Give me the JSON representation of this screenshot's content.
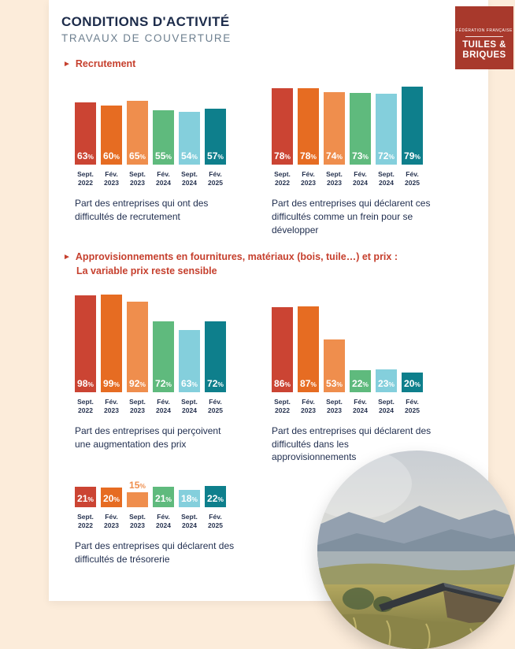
{
  "page": {
    "title": "CONDITIONS D'ACTIVITÉ",
    "subtitle": "TRAVAUX DE COUVERTURE"
  },
  "logo": {
    "org": "FÉDÉRATION FRANÇAISE",
    "name_line1": "TUILES &",
    "name_line2": "BRIQUES"
  },
  "sections": [
    {
      "arrow": "►",
      "title": "Recrutement"
    },
    {
      "arrow": "►",
      "title_line1": "Approvisionnements en fournitures, matériaux (bois, tuile…) et prix :",
      "title_line2": "La variable prix reste sensible"
    }
  ],
  "style": {
    "bar_colors": [
      "#cb4433",
      "#e66c22",
      "#ef8e4d",
      "#5fba7d",
      "#84cfdc",
      "#0e7f8c"
    ],
    "accent_red": "#c6402e",
    "navy": "#1c2b4a",
    "page_bg": "#fcecda",
    "card_bg": "#ffffff",
    "logo_bg": "#a8392c"
  },
  "chart_data": [
    {
      "type": "bar",
      "categories": [
        "Sept. 2022",
        "Fév. 2023",
        "Sept. 2023",
        "Fév. 2024",
        "Sept. 2024",
        "Fév. 2025"
      ],
      "values": [
        63,
        60,
        65,
        55,
        54,
        57
      ],
      "unit": "%",
      "ylim": [
        0,
        100
      ],
      "grid": false,
      "legend": false,
      "caption": "Part des entreprises qui ont des difficultés de recrutement"
    },
    {
      "type": "bar",
      "categories": [
        "Sept. 2022",
        "Fév. 2023",
        "Sept. 2023",
        "Fév. 2024",
        "Sept. 2024",
        "Fév. 2025"
      ],
      "values": [
        78,
        78,
        74,
        73,
        72,
        79
      ],
      "unit": "%",
      "ylim": [
        0,
        100
      ],
      "grid": false,
      "legend": false,
      "caption": "Part des entreprises qui déclarent ces difficultés comme un frein pour se développer"
    },
    {
      "type": "bar",
      "categories": [
        "Sept. 2022",
        "Fév. 2023",
        "Sept. 2023",
        "Fév. 2024",
        "Sept. 2024",
        "Fév. 2025"
      ],
      "values": [
        98,
        99,
        92,
        72,
        63,
        72
      ],
      "unit": "%",
      "ylim": [
        0,
        100
      ],
      "grid": false,
      "legend": false,
      "caption": "Part des entreprises qui perçoivent une augmentation des prix"
    },
    {
      "type": "bar",
      "categories": [
        "Sept. 2022",
        "Fév. 2023",
        "Sept. 2023",
        "Fév. 2024",
        "Sept. 2024",
        "Fév. 2025"
      ],
      "values": [
        86,
        87,
        53,
        22,
        23,
        20
      ],
      "unit": "%",
      "ylim": [
        0,
        100
      ],
      "grid": false,
      "legend": false,
      "caption": "Part des entreprises qui déclarent des difficultés dans les approvisionnements"
    },
    {
      "type": "bar",
      "categories": [
        "Sept. 2022",
        "Fév. 2023",
        "Sept. 2023",
        "Fév. 2024",
        "Sept. 2024",
        "Fév. 2025"
      ],
      "values": [
        21,
        20,
        15,
        21,
        18,
        22
      ],
      "unit": "%",
      "ylim": [
        0,
        100
      ],
      "grid": false,
      "legend": false,
      "caption": "Part des entreprises qui déclarent des difficultés de trésorerie"
    }
  ]
}
